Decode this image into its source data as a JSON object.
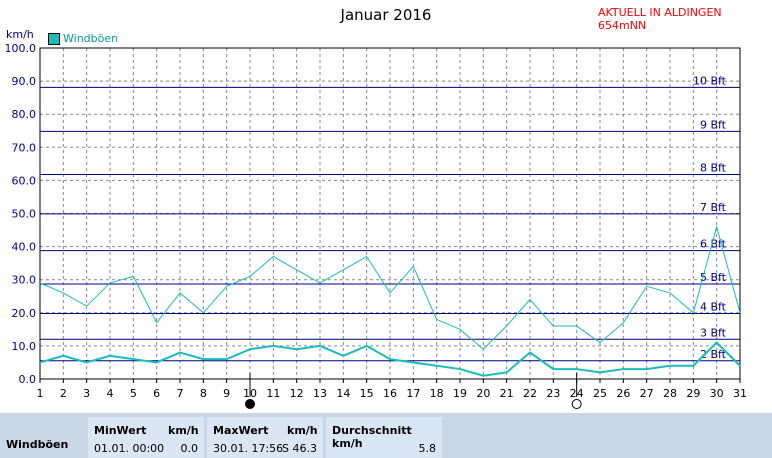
{
  "header": {
    "title": "Januar 2016",
    "station": "AKTUELL IN ALDINGEN 654mNN"
  },
  "chart_data": {
    "type": "line",
    "title": "Januar 2016",
    "ylabel": "km/h",
    "ylim": [
      0,
      100
    ],
    "yticks": [
      "0.0",
      "10.0",
      "20.0",
      "30.0",
      "40.0",
      "50.0",
      "60.0",
      "70.0",
      "80.0",
      "90.0",
      "100.0"
    ],
    "x": [
      1,
      2,
      3,
      4,
      5,
      6,
      7,
      8,
      9,
      10,
      11,
      12,
      13,
      14,
      15,
      16,
      17,
      18,
      19,
      20,
      21,
      22,
      23,
      24,
      25,
      26,
      27,
      28,
      29,
      30,
      31
    ],
    "xticks": [
      "1",
      "2",
      "3",
      "4",
      "5",
      "6",
      "7",
      "8",
      "9",
      "10",
      "11",
      "12",
      "13",
      "14",
      "15",
      "16",
      "17",
      "18",
      "19",
      "20",
      "21",
      "22",
      "23",
      "24",
      "25",
      "26",
      "27",
      "28",
      "29",
      "30",
      "31"
    ],
    "legend": [
      {
        "name": "Windböen",
        "color": "#1bbcbc"
      }
    ],
    "series": [
      {
        "name": "Windböen",
        "role": "max",
        "values": [
          29,
          26,
          22,
          29,
          31,
          17,
          26,
          20,
          28,
          31,
          37,
          33,
          29,
          33,
          37,
          26,
          34,
          18,
          15,
          9,
          16,
          24,
          16,
          16,
          11,
          17,
          28,
          26,
          20,
          46,
          20
        ]
      },
      {
        "role": "mean",
        "values": [
          5,
          7,
          5,
          7,
          6,
          5,
          8,
          6,
          6,
          9,
          10,
          9,
          10,
          7,
          10,
          6,
          5,
          4,
          3,
          1,
          2,
          8,
          3,
          3,
          2,
          3,
          3,
          4,
          4,
          11,
          4
        ]
      }
    ],
    "beaufort": [
      {
        "label": "2 Bft",
        "value": 5.5
      },
      {
        "label": "3 Bft",
        "value": 12
      },
      {
        "label": "4 Bft",
        "value": 19.8
      },
      {
        "label": "5 Bft",
        "value": 28.7
      },
      {
        "label": "6 Bft",
        "value": 38.8
      },
      {
        "label": "7 Bft",
        "value": 49.9
      },
      {
        "label": "8 Bft",
        "value": 61.8
      },
      {
        "label": "9 Bft",
        "value": 74.8
      },
      {
        "label": "10 Bft",
        "value": 88.1
      }
    ],
    "moon_phases": [
      {
        "day": 10,
        "phase": "new"
      },
      {
        "day": 24,
        "phase": "full"
      }
    ],
    "grid": true,
    "colors": {
      "line": "#1bbcbc",
      "beaufort": "#000080",
      "grid": "#888888",
      "axis_text": "#0000a0"
    }
  },
  "stats": {
    "row_label": "Windböen",
    "min_header": "MinWert",
    "min_unit": "km/h",
    "min_time": "01.01.  00:00",
    "min_value": "0.0",
    "max_header": "MaxWert",
    "max_unit": "km/h",
    "max_time": "30.01.  17:56",
    "max_value": "S 46.3",
    "avg_header": "Durchschnitt km/h",
    "avg_value": "5.8"
  }
}
